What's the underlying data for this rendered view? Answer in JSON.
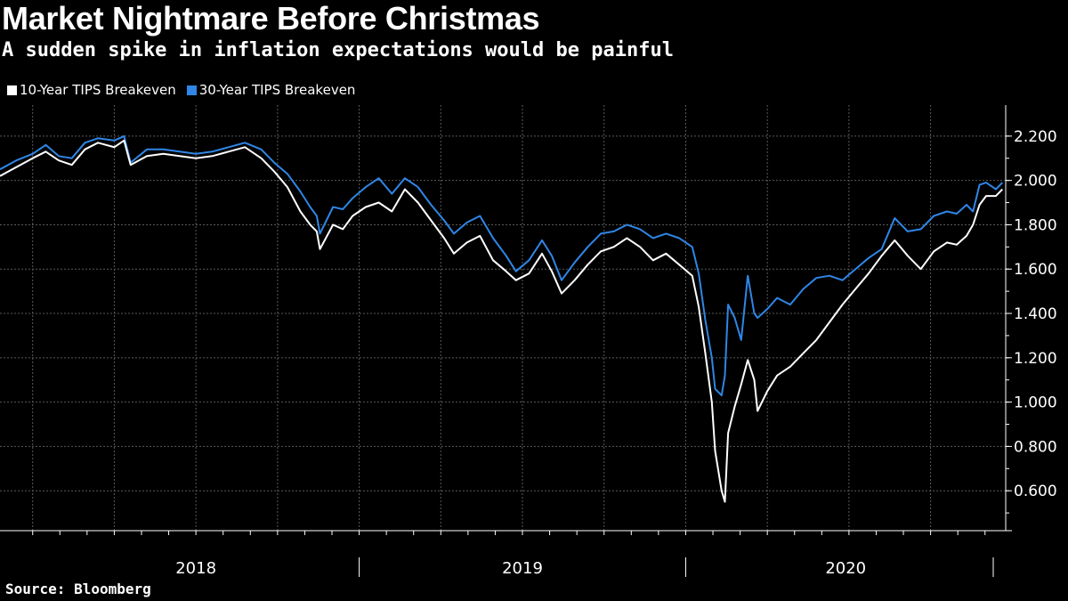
{
  "header": {
    "title": "Market Nightmare Before Christmas",
    "subtitle": "A sudden spike in inflation expectations would be painful"
  },
  "footer": {
    "source": "Source: Bloomberg"
  },
  "colors": {
    "series_10y": "#ffffff",
    "series_30y": "#2f86e6",
    "grid": "#5a5a5a",
    "axis": "#ffffff"
  },
  "chart_data": {
    "type": "line",
    "title": "Market Nightmare Before Christmas",
    "subtitle": "A sudden spike in inflation expectations would be painful",
    "xlabel": "",
    "ylabel": "",
    "x_range": [
      2017.9,
      2020.98
    ],
    "ylim": [
      0.42,
      2.34
    ],
    "yticks": [
      0.6,
      0.8,
      1.0,
      1.2,
      1.4,
      1.6,
      1.8,
      2.0,
      2.2
    ],
    "ytick_labels": [
      "0.600",
      "0.800",
      "1.000",
      "1.200",
      "1.400",
      "1.600",
      "1.800",
      "2.000",
      "2.200"
    ],
    "years": [
      {
        "label": "2018",
        "start": 2018.0,
        "end": 2019.0
      },
      {
        "label": "2019",
        "start": 2019.0,
        "end": 2020.0
      },
      {
        "label": "2020",
        "start": 2020.0,
        "end": 2020.98
      }
    ],
    "grid": true,
    "legend_position": "top-left",
    "series": [
      {
        "name": "10-Year TIPS Breakeven",
        "color": "#ffffff",
        "points": [
          [
            2017.9,
            2.02
          ],
          [
            2017.95,
            2.06
          ],
          [
            2018.0,
            2.1
          ],
          [
            2018.04,
            2.13
          ],
          [
            2018.08,
            2.09
          ],
          [
            2018.12,
            2.07
          ],
          [
            2018.16,
            2.14
          ],
          [
            2018.2,
            2.17
          ],
          [
            2018.25,
            2.15
          ],
          [
            2018.28,
            2.18
          ],
          [
            2018.3,
            2.07
          ],
          [
            2018.35,
            2.11
          ],
          [
            2018.4,
            2.12
          ],
          [
            2018.45,
            2.11
          ],
          [
            2018.5,
            2.1
          ],
          [
            2018.55,
            2.11
          ],
          [
            2018.6,
            2.13
          ],
          [
            2018.65,
            2.15
          ],
          [
            2018.7,
            2.1
          ],
          [
            2018.74,
            2.04
          ],
          [
            2018.78,
            1.97
          ],
          [
            2018.82,
            1.86
          ],
          [
            2018.85,
            1.8
          ],
          [
            2018.87,
            1.77
          ],
          [
            2018.88,
            1.69
          ],
          [
            2018.92,
            1.8
          ],
          [
            2018.95,
            1.78
          ],
          [
            2018.98,
            1.84
          ],
          [
            2019.02,
            1.88
          ],
          [
            2019.06,
            1.9
          ],
          [
            2019.1,
            1.86
          ],
          [
            2019.14,
            1.96
          ],
          [
            2019.18,
            1.9
          ],
          [
            2019.22,
            1.82
          ],
          [
            2019.26,
            1.74
          ],
          [
            2019.29,
            1.67
          ],
          [
            2019.33,
            1.72
          ],
          [
            2019.37,
            1.75
          ],
          [
            2019.41,
            1.64
          ],
          [
            2019.45,
            1.59
          ],
          [
            2019.48,
            1.55
          ],
          [
            2019.52,
            1.58
          ],
          [
            2019.56,
            1.67
          ],
          [
            2019.59,
            1.59
          ],
          [
            2019.62,
            1.49
          ],
          [
            2019.66,
            1.55
          ],
          [
            2019.7,
            1.62
          ],
          [
            2019.74,
            1.68
          ],
          [
            2019.78,
            1.7
          ],
          [
            2019.82,
            1.74
          ],
          [
            2019.86,
            1.7
          ],
          [
            2019.9,
            1.64
          ],
          [
            2019.94,
            1.67
          ],
          [
            2019.98,
            1.62
          ],
          [
            2020.02,
            1.57
          ],
          [
            2020.04,
            1.43
          ],
          [
            2020.06,
            1.22
          ],
          [
            2020.08,
            1.0
          ],
          [
            2020.09,
            0.78
          ],
          [
            2020.11,
            0.6
          ],
          [
            2020.12,
            0.55
          ],
          [
            2020.13,
            0.86
          ],
          [
            2020.15,
            0.98
          ],
          [
            2020.17,
            1.08
          ],
          [
            2020.19,
            1.19
          ],
          [
            2020.21,
            1.1
          ],
          [
            2020.22,
            0.96
          ],
          [
            2020.25,
            1.05
          ],
          [
            2020.28,
            1.12
          ],
          [
            2020.32,
            1.16
          ],
          [
            2020.36,
            1.22
          ],
          [
            2020.4,
            1.28
          ],
          [
            2020.44,
            1.36
          ],
          [
            2020.48,
            1.44
          ],
          [
            2020.52,
            1.51
          ],
          [
            2020.56,
            1.58
          ],
          [
            2020.6,
            1.66
          ],
          [
            2020.64,
            1.73
          ],
          [
            2020.68,
            1.66
          ],
          [
            2020.72,
            1.6
          ],
          [
            2020.76,
            1.68
          ],
          [
            2020.8,
            1.72
          ],
          [
            2020.83,
            1.71
          ],
          [
            2020.86,
            1.75
          ],
          [
            2020.88,
            1.8
          ],
          [
            2020.9,
            1.89
          ],
          [
            2020.92,
            1.93
          ],
          [
            2020.95,
            1.93
          ],
          [
            2020.97,
            1.96
          ]
        ]
      },
      {
        "name": "30-Year TIPS Breakeven",
        "color": "#2f86e6",
        "points": [
          [
            2017.9,
            2.05
          ],
          [
            2017.95,
            2.09
          ],
          [
            2018.0,
            2.12
          ],
          [
            2018.04,
            2.16
          ],
          [
            2018.08,
            2.11
          ],
          [
            2018.12,
            2.1
          ],
          [
            2018.16,
            2.17
          ],
          [
            2018.2,
            2.19
          ],
          [
            2018.25,
            2.18
          ],
          [
            2018.28,
            2.2
          ],
          [
            2018.3,
            2.08
          ],
          [
            2018.35,
            2.14
          ],
          [
            2018.4,
            2.14
          ],
          [
            2018.45,
            2.13
          ],
          [
            2018.5,
            2.12
          ],
          [
            2018.55,
            2.13
          ],
          [
            2018.6,
            2.15
          ],
          [
            2018.65,
            2.17
          ],
          [
            2018.7,
            2.14
          ],
          [
            2018.74,
            2.08
          ],
          [
            2018.78,
            2.03
          ],
          [
            2018.82,
            1.95
          ],
          [
            2018.85,
            1.88
          ],
          [
            2018.87,
            1.84
          ],
          [
            2018.88,
            1.76
          ],
          [
            2018.92,
            1.88
          ],
          [
            2018.95,
            1.87
          ],
          [
            2018.98,
            1.92
          ],
          [
            2019.02,
            1.97
          ],
          [
            2019.06,
            2.01
          ],
          [
            2019.1,
            1.94
          ],
          [
            2019.14,
            2.01
          ],
          [
            2019.18,
            1.97
          ],
          [
            2019.22,
            1.89
          ],
          [
            2019.26,
            1.82
          ],
          [
            2019.29,
            1.76
          ],
          [
            2019.33,
            1.81
          ],
          [
            2019.37,
            1.84
          ],
          [
            2019.41,
            1.74
          ],
          [
            2019.45,
            1.66
          ],
          [
            2019.48,
            1.59
          ],
          [
            2019.52,
            1.64
          ],
          [
            2019.56,
            1.73
          ],
          [
            2019.59,
            1.66
          ],
          [
            2019.62,
            1.55
          ],
          [
            2019.66,
            1.63
          ],
          [
            2019.7,
            1.7
          ],
          [
            2019.74,
            1.76
          ],
          [
            2019.78,
            1.77
          ],
          [
            2019.82,
            1.8
          ],
          [
            2019.86,
            1.78
          ],
          [
            2019.9,
            1.74
          ],
          [
            2019.94,
            1.76
          ],
          [
            2019.98,
            1.74
          ],
          [
            2020.02,
            1.7
          ],
          [
            2020.04,
            1.58
          ],
          [
            2020.06,
            1.37
          ],
          [
            2020.08,
            1.2
          ],
          [
            2020.09,
            1.06
          ],
          [
            2020.11,
            1.03
          ],
          [
            2020.12,
            1.12
          ],
          [
            2020.13,
            1.44
          ],
          [
            2020.15,
            1.38
          ],
          [
            2020.17,
            1.28
          ],
          [
            2020.19,
            1.57
          ],
          [
            2020.21,
            1.4
          ],
          [
            2020.22,
            1.38
          ],
          [
            2020.25,
            1.42
          ],
          [
            2020.28,
            1.47
          ],
          [
            2020.32,
            1.44
          ],
          [
            2020.36,
            1.51
          ],
          [
            2020.4,
            1.56
          ],
          [
            2020.44,
            1.57
          ],
          [
            2020.48,
            1.55
          ],
          [
            2020.52,
            1.6
          ],
          [
            2020.56,
            1.65
          ],
          [
            2020.6,
            1.69
          ],
          [
            2020.64,
            1.83
          ],
          [
            2020.68,
            1.77
          ],
          [
            2020.72,
            1.78
          ],
          [
            2020.76,
            1.84
          ],
          [
            2020.8,
            1.86
          ],
          [
            2020.83,
            1.85
          ],
          [
            2020.86,
            1.89
          ],
          [
            2020.88,
            1.86
          ],
          [
            2020.9,
            1.98
          ],
          [
            2020.92,
            1.99
          ],
          [
            2020.95,
            1.96
          ],
          [
            2020.97,
            1.99
          ]
        ]
      }
    ]
  }
}
